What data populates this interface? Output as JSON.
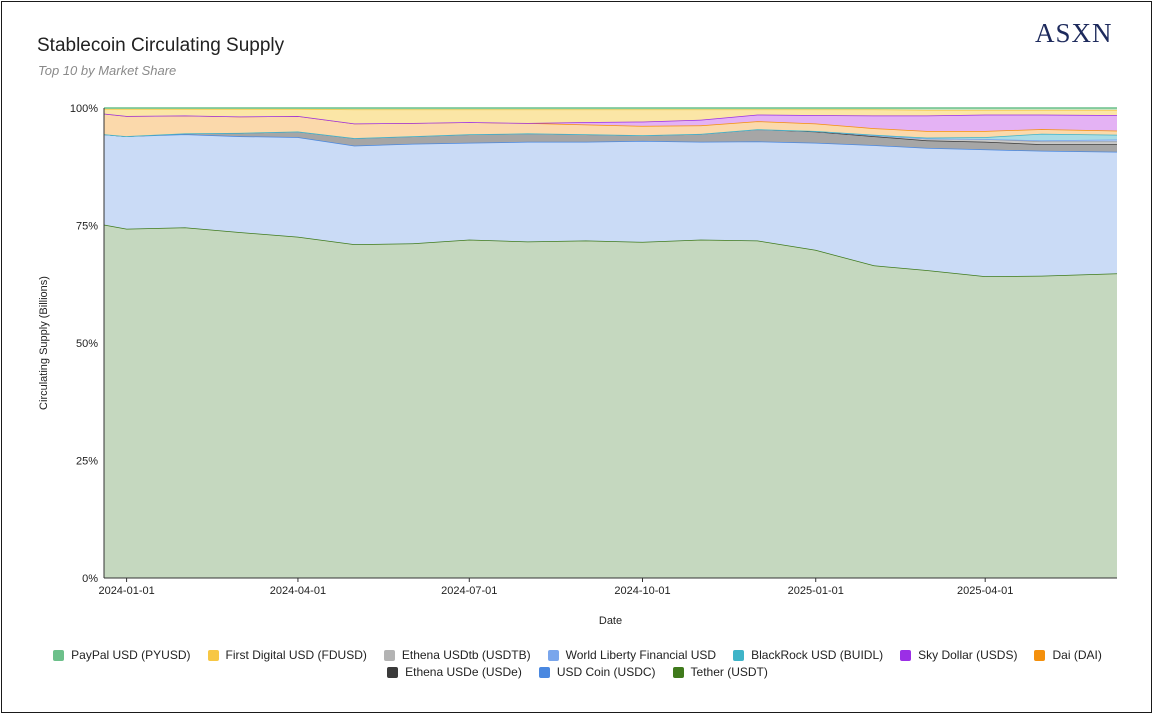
{
  "header": {
    "title": "Stablecoin Circulating Supply",
    "subtitle": "Top 10 by Market Share",
    "brand": "ASXN"
  },
  "chart_data": {
    "type": "area",
    "stacked": "percent",
    "title": "Stablecoin Circulating Supply",
    "subtitle": "Top 10 by Market Share",
    "xlabel": "Date",
    "ylabel": "Circulating Supply (Billions)",
    "ylim": [
      0,
      100
    ],
    "y_ticks": [
      "0%",
      "25%",
      "50%",
      "75%",
      "100%"
    ],
    "x_range": [
      "2023-12-20",
      "2025-06-10"
    ],
    "x_ticks": [
      "2024-01-01",
      "2024-04-01",
      "2024-07-01",
      "2024-10-01",
      "2025-01-01",
      "2025-04-01"
    ],
    "grid": false,
    "legend_position": "bottom",
    "x": [
      "2023-12-20",
      "2024-01-01",
      "2024-02-01",
      "2024-03-01",
      "2024-04-01",
      "2024-05-01",
      "2024-06-01",
      "2024-07-01",
      "2024-08-01",
      "2024-09-01",
      "2024-10-01",
      "2024-11-01",
      "2024-12-01",
      "2025-01-01",
      "2025-02-01",
      "2025-03-01",
      "2025-04-01",
      "2025-05-01",
      "2025-06-10"
    ],
    "series": [
      {
        "name": "Tether (USDT)",
        "color": "#3f7a1c",
        "fill": "#c5d8bf",
        "values": [
          75.2,
          74.3,
          74.6,
          73.6,
          72.6,
          71.0,
          71.2,
          72.0,
          71.6,
          71.8,
          71.5,
          72.0,
          71.8,
          69.8,
          66.5,
          65.5,
          64.2,
          64.3,
          64.8
        ]
      },
      {
        "name": "USD Coin (USDC)",
        "color": "#4a88e0",
        "fill": "#cadbf6",
        "values": [
          19.2,
          19.7,
          19.8,
          20.4,
          21.2,
          21.0,
          21.2,
          20.6,
          21.2,
          21.0,
          21.5,
          20.8,
          21.1,
          22.8,
          25.6,
          26.0,
          27.0,
          26.6,
          25.9
        ]
      },
      {
        "name": "Ethena USDe (USDe)",
        "color": "#3a3a3a",
        "fill": "#a6a6a6",
        "values": [
          0.0,
          0.0,
          0.2,
          0.7,
          1.2,
          1.6,
          1.6,
          1.8,
          1.8,
          1.6,
          1.2,
          1.7,
          2.6,
          2.4,
          1.9,
          1.6,
          1.6,
          1.4,
          1.6
        ]
      },
      {
        "name": "Ethena USDtb (USDTB)",
        "color": "#9e9e9e",
        "fill": "#c9c9c9",
        "values": [
          0.0,
          0.0,
          0.0,
          0.0,
          0.0,
          0.0,
          0.0,
          0.0,
          0.0,
          0.0,
          0.0,
          0.0,
          0.0,
          0.1,
          0.2,
          0.4,
          0.6,
          0.6,
          0.6
        ]
      },
      {
        "name": "World Liberty Financial USD",
        "color": "#7aa6ec",
        "fill": "#b5cdf3",
        "values": [
          0.0,
          0.0,
          0.0,
          0.0,
          0.0,
          0.0,
          0.0,
          0.0,
          0.0,
          0.0,
          0.0,
          0.0,
          0.0,
          0.0,
          0.0,
          0.0,
          0.0,
          0.2,
          0.4
        ]
      },
      {
        "name": "BlackRock USD (BUIDL)",
        "color": "#3fb4c8",
        "fill": "#a9dce5",
        "values": [
          0.0,
          0.0,
          0.0,
          0.0,
          0.0,
          0.0,
          0.0,
          0.0,
          0.0,
          0.0,
          0.0,
          0.0,
          0.0,
          0.0,
          0.1,
          0.2,
          0.4,
          1.4,
          1.0
        ]
      },
      {
        "name": "Dai (DAI)",
        "color": "#f4900c",
        "fill": "#fbd9ab",
        "values": [
          4.4,
          4.3,
          3.8,
          3.5,
          3.3,
          3.1,
          2.8,
          2.6,
          2.2,
          2.1,
          2.0,
          1.8,
          1.7,
          1.6,
          1.4,
          1.4,
          1.3,
          1.0,
          0.9
        ]
      },
      {
        "name": "Sky Dollar (USDS)",
        "color": "#9b2fe6",
        "fill": "#e4b2f4",
        "values": [
          0.0,
          0.0,
          0.0,
          0.0,
          0.0,
          0.0,
          0.0,
          0.0,
          0.0,
          0.5,
          0.9,
          1.2,
          1.4,
          1.8,
          2.7,
          3.3,
          3.5,
          3.1,
          3.3
        ]
      },
      {
        "name": "First Digital USD (FDUSD)",
        "color": "#f7c744",
        "fill": "#fbe6a6",
        "values": [
          1.0,
          1.5,
          1.4,
          1.6,
          1.5,
          3.0,
          2.9,
          2.7,
          2.9,
          2.7,
          2.6,
          2.2,
          1.1,
          1.2,
          1.3,
          1.2,
          1.0,
          1.0,
          1.1
        ]
      },
      {
        "name": "PayPal USD (PYUSD)",
        "color": "#6cc08a",
        "fill": "#c7e7cf",
        "values": [
          0.2,
          0.2,
          0.2,
          0.2,
          0.2,
          0.3,
          0.3,
          0.3,
          0.3,
          0.3,
          0.3,
          0.3,
          0.3,
          0.3,
          0.3,
          0.4,
          0.4,
          0.4,
          0.4
        ]
      }
    ]
  },
  "legend": {
    "row1": [
      {
        "label": "PayPal USD (PYUSD)",
        "color": "#6cc08a"
      },
      {
        "label": "First Digital USD (FDUSD)",
        "color": "#f7c744"
      },
      {
        "label": "Ethena USDtb (USDTB)",
        "color": "#b3b3b3"
      },
      {
        "label": "World Liberty Financial USD",
        "color": "#7aa6ec"
      },
      {
        "label": "BlackRock USD (BUIDL)",
        "color": "#3fb4c8"
      },
      {
        "label": "Sky Dollar (USDS)",
        "color": "#9b2fe6"
      },
      {
        "label": "Dai (DAI)",
        "color": "#f4900c"
      }
    ],
    "row2": [
      {
        "label": "Ethena USDe (USDe)",
        "color": "#3a3a3a"
      },
      {
        "label": "USD Coin (USDC)",
        "color": "#4a88e0"
      },
      {
        "label": "Tether (USDT)",
        "color": "#3f7a1c"
      }
    ]
  }
}
